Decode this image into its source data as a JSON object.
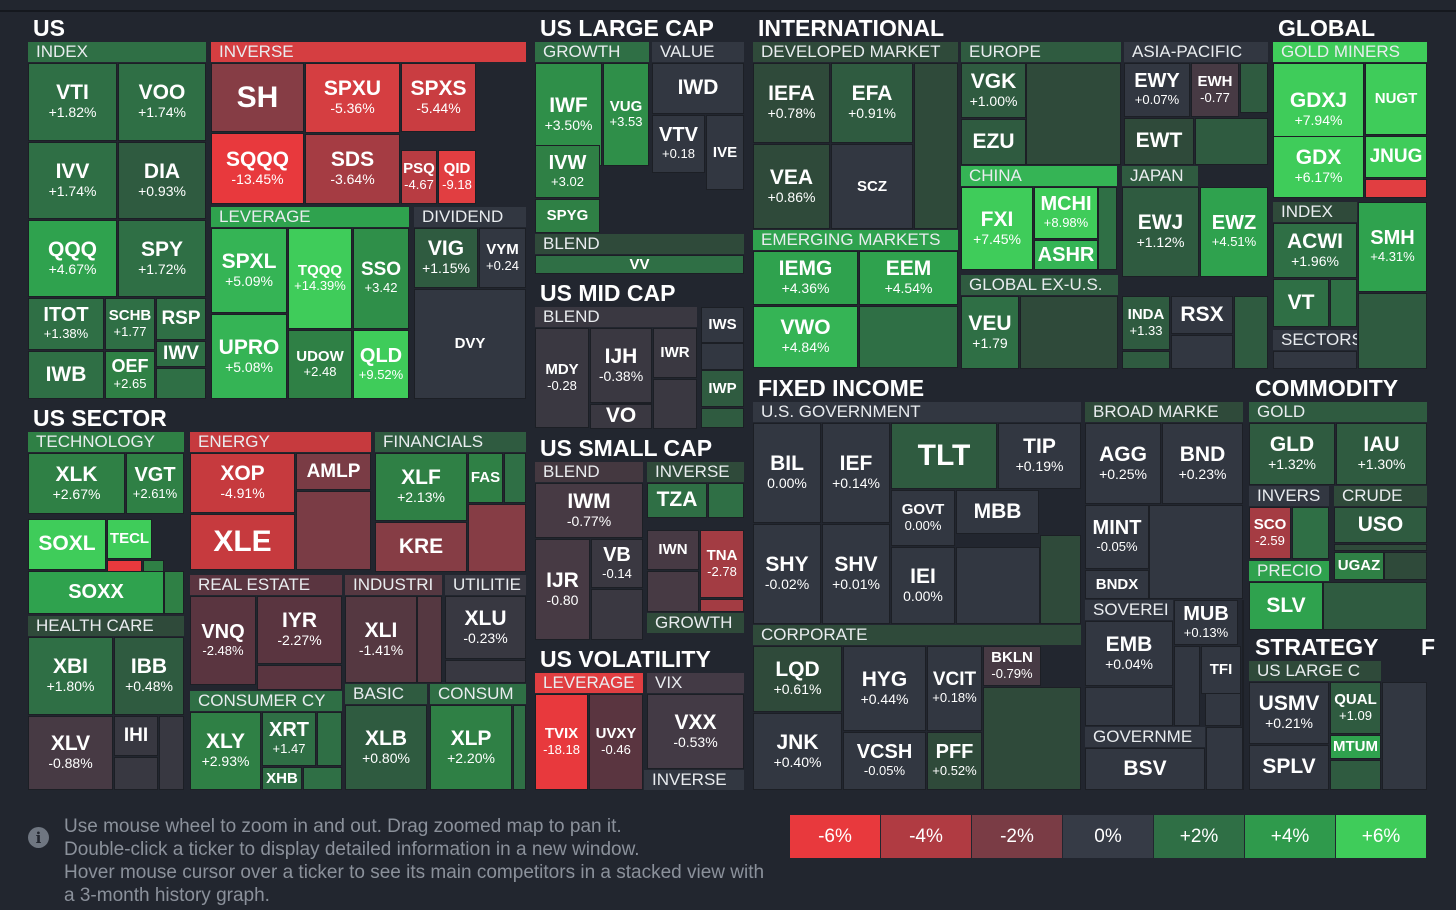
{
  "sections": [
    {
      "id": "us",
      "label": "US"
    },
    {
      "id": "us-large-cap",
      "label": "US LARGE CAP"
    },
    {
      "id": "international",
      "label": "INTERNATIONAL"
    },
    {
      "id": "global",
      "label": "GLOBAL"
    },
    {
      "id": "us-mid-cap",
      "label": "US MID CAP"
    },
    {
      "id": "us-sector",
      "label": "US SECTOR"
    },
    {
      "id": "us-small-cap",
      "label": "US SMALL CAP"
    },
    {
      "id": "fixed-income",
      "label": "FIXED INCOME"
    },
    {
      "id": "commodity",
      "label": "COMMODITY"
    },
    {
      "id": "us-volatility",
      "label": "US VOLATILITY"
    },
    {
      "id": "strategy",
      "label": "STRATEGY"
    },
    {
      "id": "f",
      "label": "F"
    }
  ],
  "groups": [
    {
      "id": "index",
      "label": "INDEX",
      "c": "#2f6f45"
    },
    {
      "id": "inverse",
      "label": "INVERSE",
      "c": "#d53e41"
    },
    {
      "id": "leverage",
      "label": "LEVERAGE",
      "c": "#2fa24e"
    },
    {
      "id": "dividend",
      "label": "DIVIDEND",
      "c": "#323741"
    },
    {
      "id": "growth",
      "label": "GROWTH",
      "c": "#2f6f45"
    },
    {
      "id": "value",
      "label": "VALUE",
      "c": "#323741"
    },
    {
      "id": "blend-lc",
      "label": "BLEND",
      "c": "#2f4a3a"
    },
    {
      "id": "developed",
      "label": "DEVELOPED MARKET",
      "c": "#2f4a3a"
    },
    {
      "id": "europe",
      "label": "EUROPE",
      "c": "#2f5b40"
    },
    {
      "id": "asia-pacific",
      "label": "ASIA-PACIFIC",
      "c": "#323741"
    },
    {
      "id": "gold-miners",
      "label": "GOLD MINERS",
      "c": "#3fcc5a"
    },
    {
      "id": "china",
      "label": "CHINA",
      "c": "#35b455"
    },
    {
      "id": "japan",
      "label": "JAPAN",
      "c": "#2f5b40"
    },
    {
      "id": "index-g",
      "label": "INDEX",
      "c": "#2f4a3a"
    },
    {
      "id": "emerging",
      "label": "EMERGING MARKETS",
      "c": "#2fa24e"
    },
    {
      "id": "global-ex-us",
      "label": "GLOBAL EX-U.S.",
      "c": "#2f5b40"
    },
    {
      "id": "sectors",
      "label": "SECTORS",
      "c": "#323741"
    },
    {
      "id": "blend-mc",
      "label": "BLEND",
      "c": "#3a3841"
    },
    {
      "id": "technology",
      "label": "TECHNOLOGY",
      "c": "#2f8045"
    },
    {
      "id": "energy",
      "label": "ENERGY",
      "c": "#c63a3e"
    },
    {
      "id": "financials",
      "label": "FINANCIALS",
      "c": "#2f5b40"
    },
    {
      "id": "blend-sc",
      "label": "BLEND",
      "c": "#443840"
    },
    {
      "id": "inverse-sc",
      "label": "INVERSE",
      "c": "#2f4a3a"
    },
    {
      "id": "us-government",
      "label": "U.S. GOVERNMENT",
      "c": "#323741"
    },
    {
      "id": "broad-market",
      "label": "BROAD MARKE",
      "c": "#2f4a3a"
    },
    {
      "id": "gold",
      "label": "GOLD",
      "c": "#2f5b40"
    },
    {
      "id": "invers-c",
      "label": "INVERS",
      "c": "#323741"
    },
    {
      "id": "crude",
      "label": "CRUDE",
      "c": "#2f4a3a"
    },
    {
      "id": "real-estate",
      "label": "REAL ESTATE",
      "c": "#5a3540"
    },
    {
      "id": "industri",
      "label": "INDUSTRI",
      "c": "#553841"
    },
    {
      "id": "utilitie",
      "label": "UTILITIE",
      "c": "#383841"
    },
    {
      "id": "health-care",
      "label": "HEALTH CARE",
      "c": "#2f4a3a"
    },
    {
      "id": "growth-sc",
      "label": "GROWTH",
      "c": "#2f4a3a"
    },
    {
      "id": "precio",
      "label": "PRECIO",
      "c": "#2fa24e"
    },
    {
      "id": "soverei",
      "label": "SOVEREI",
      "c": "#323741"
    },
    {
      "id": "corporate",
      "label": "CORPORATE",
      "c": "#2f4a3a"
    },
    {
      "id": "leverage-vol",
      "label": "LEVERAGE",
      "c": "#e13e41"
    },
    {
      "id": "vix",
      "label": "VIX",
      "c": "#433a45"
    },
    {
      "id": "consumer-cy",
      "label": "CONSUMER CY",
      "c": "#2f6f45"
    },
    {
      "id": "basic",
      "label": "BASIC",
      "c": "#2f5b40"
    },
    {
      "id": "consum",
      "label": "CONSUM",
      "c": "#2f6f45"
    },
    {
      "id": "us-large-c",
      "label": "US LARGE C",
      "c": "#2f4a3a"
    },
    {
      "id": "governme",
      "label": "GOVERNME",
      "c": "#323741"
    },
    {
      "id": "inverse-vol",
      "label": "INVERSE",
      "c": "#323741"
    }
  ],
  "tickers": [
    {
      "s": "VTI",
      "v": "+1.82%",
      "c": "#2f6f45"
    },
    {
      "s": "VOO",
      "v": "+1.74%",
      "c": "#2f6f45"
    },
    {
      "s": "IVV",
      "v": "+1.74%",
      "c": "#2f6f45"
    },
    {
      "s": "DIA",
      "v": "+0.93%",
      "c": "#2f5b40"
    },
    {
      "s": "QQQ",
      "v": "+4.67%",
      "c": "#2fa24e"
    },
    {
      "s": "SPY",
      "v": "+1.72%",
      "c": "#2f6f45"
    },
    {
      "s": "ITOT",
      "v": "+1.38%",
      "c": "#2f6f45"
    },
    {
      "s": "SCHB",
      "v": "+1.77",
      "c": "#2f6f45"
    },
    {
      "s": "RSP",
      "v": "",
      "c": "#2f6f45"
    },
    {
      "s": "IWV",
      "v": "",
      "c": "#2f6f45"
    },
    {
      "s": "IWB",
      "v": "",
      "c": "#2f6f45"
    },
    {
      "s": "OEF",
      "v": "+2.65",
      "c": "#2f8045"
    },
    {
      "s": "SH",
      "v": "",
      "c": "#863d45"
    },
    {
      "s": "SPXU",
      "v": "-5.36%",
      "c": "#d53e41"
    },
    {
      "s": "SPXS",
      "v": "-5.44%",
      "c": "#c93d41"
    },
    {
      "s": "SQQQ",
      "v": "-13.45%",
      "c": "#e8393d"
    },
    {
      "s": "SDS",
      "v": "-3.64%",
      "c": "#a53c43"
    },
    {
      "s": "PSQ",
      "v": "-4.67",
      "c": "#b83c42"
    },
    {
      "s": "QID",
      "v": "-9.18",
      "c": "#e13e41"
    },
    {
      "s": "SPXL",
      "v": "+5.09%",
      "c": "#35b455"
    },
    {
      "s": "TQQQ",
      "v": "+14.39%",
      "c": "#3fcc5a"
    },
    {
      "s": "SSO",
      "v": "+3.42",
      "c": "#2f8f49"
    },
    {
      "s": "UPRO",
      "v": "+5.08%",
      "c": "#35b455"
    },
    {
      "s": "UDOW",
      "v": "+2.48",
      "c": "#2f8045"
    },
    {
      "s": "QLD",
      "v": "+9.52%",
      "c": "#3fcc5a"
    },
    {
      "s": "VIG",
      "v": "+1.15%",
      "c": "#2f5b40"
    },
    {
      "s": "VYM",
      "v": "+0.24",
      "c": "#323741"
    },
    {
      "s": "DVY",
      "v": "",
      "c": "#323741"
    },
    {
      "s": "IWF",
      "v": "+3.50%",
      "c": "#2f8f49"
    },
    {
      "s": "VUG",
      "v": "+3.53",
      "c": "#2f8f49"
    },
    {
      "s": "IVW",
      "v": "+3.02",
      "c": "#2f8045"
    },
    {
      "s": "SPYG",
      "v": "",
      "c": "#2f8045"
    },
    {
      "s": "IWD",
      "v": "",
      "c": "#323741"
    },
    {
      "s": "VTV",
      "v": "+0.18",
      "c": "#323741"
    },
    {
      "s": "IVE",
      "v": "",
      "c": "#323741"
    },
    {
      "s": "VV",
      "v": "",
      "c": "#2f6f45"
    },
    {
      "s": "IEFA",
      "v": "+0.78%",
      "c": "#2f4a3a"
    },
    {
      "s": "EFA",
      "v": "+0.91%",
      "c": "#2f5b40"
    },
    {
      "s": "VEA",
      "v": "+0.86%",
      "c": "#2f4a3a"
    },
    {
      "s": "SCZ",
      "v": "",
      "c": "#323741"
    },
    {
      "s": "VGK",
      "v": "+1.00%",
      "c": "#2f5b40"
    },
    {
      "s": "EZU",
      "v": "",
      "c": "#2f5b40"
    },
    {
      "s": "EWY",
      "v": "+0.07%",
      "c": "#323741"
    },
    {
      "s": "EWH",
      "v": "-0.77",
      "c": "#473a44"
    },
    {
      "s": "EWT",
      "v": "",
      "c": "#2f4a3a"
    },
    {
      "s": "GDXJ",
      "v": "+7.94%",
      "c": "#3fcc5a"
    },
    {
      "s": "NUGT",
      "v": "",
      "c": "#3fcc5a"
    },
    {
      "s": "GDX",
      "v": "+6.17%",
      "c": "#3fcc5a"
    },
    {
      "s": "JNUG",
      "v": "",
      "c": "#3fcc5a"
    },
    {
      "s": "FXI",
      "v": "+7.45%",
      "c": "#3fcc5a"
    },
    {
      "s": "MCHI",
      "v": "+8.98%",
      "c": "#3fcc5a"
    },
    {
      "s": "ASHR",
      "v": "",
      "c": "#35b455"
    },
    {
      "s": "EWJ",
      "v": "+1.12%",
      "c": "#2f5b40"
    },
    {
      "s": "EWZ",
      "v": "+4.51%",
      "c": "#2fa24e"
    },
    {
      "s": "ACWI",
      "v": "+1.96%",
      "c": "#2f6f45"
    },
    {
      "s": "SMH",
      "v": "+4.31%",
      "c": "#2fa24e"
    },
    {
      "s": "VT",
      "v": "",
      "c": "#2f6f45"
    },
    {
      "s": "IEMG",
      "v": "+4.36%",
      "c": "#2fa24e"
    },
    {
      "s": "EEM",
      "v": "+4.54%",
      "c": "#2fa24e"
    },
    {
      "s": "VWO",
      "v": "+4.84%",
      "c": "#35b455"
    },
    {
      "s": "VEU",
      "v": "+1.79",
      "c": "#2f6f45"
    },
    {
      "s": "INDA",
      "v": "+1.33",
      "c": "#2f5b40"
    },
    {
      "s": "RSX",
      "v": "",
      "c": "#323741"
    },
    {
      "s": "MDY",
      "v": "-0.28",
      "c": "#3a3841"
    },
    {
      "s": "IJH",
      "v": "-0.38%",
      "c": "#3a3841"
    },
    {
      "s": "IWR",
      "v": "",
      "c": "#3a3841"
    },
    {
      "s": "IWS",
      "v": "",
      "c": "#323741"
    },
    {
      "s": "IWP",
      "v": "",
      "c": "#2f5b40"
    },
    {
      "s": "VO",
      "v": "",
      "c": "#3a3841"
    },
    {
      "s": "XLK",
      "v": "+2.67%",
      "c": "#2f8045"
    },
    {
      "s": "VGT",
      "v": "+2.61%",
      "c": "#2f8045"
    },
    {
      "s": "SOXL",
      "v": "",
      "c": "#3fcc5a"
    },
    {
      "s": "TECL",
      "v": "",
      "c": "#3fcc5a"
    },
    {
      "s": "SOXX",
      "v": "",
      "c": "#2fa24e"
    },
    {
      "s": "XOP",
      "v": "-4.91%",
      "c": "#c63a3e"
    },
    {
      "s": "AMLP",
      "v": "",
      "c": "#7a3c45"
    },
    {
      "s": "XLE",
      "v": "",
      "c": "#c63a3e"
    },
    {
      "s": "XLF",
      "v": "+2.13%",
      "c": "#2f8045"
    },
    {
      "s": "FAS",
      "v": "",
      "c": "#2f8045"
    },
    {
      "s": "KRE",
      "v": "",
      "c": "#863d45"
    },
    {
      "s": "IWM",
      "v": "-0.77%",
      "c": "#473a44"
    },
    {
      "s": "IJR",
      "v": "-0.80",
      "c": "#473a44"
    },
    {
      "s": "VB",
      "v": "-0.14",
      "c": "#3a3841"
    },
    {
      "s": "TZA",
      "v": "",
      "c": "#2f6f45"
    },
    {
      "s": "IWN",
      "v": "",
      "c": "#473a44"
    },
    {
      "s": "TNA",
      "v": "-2.78",
      "c": "#a33c43"
    },
    {
      "s": "BIL",
      "v": "0.00%",
      "c": "#323741"
    },
    {
      "s": "IEF",
      "v": "+0.14%",
      "c": "#323741"
    },
    {
      "s": "TLT",
      "v": "",
      "c": "#2f5b40"
    },
    {
      "s": "TIP",
      "v": "+0.19%",
      "c": "#323741"
    },
    {
      "s": "GOVT",
      "v": "0.00%",
      "c": "#323741"
    },
    {
      "s": "MBB",
      "v": "",
      "c": "#323741"
    },
    {
      "s": "SHY",
      "v": "-0.02%",
      "c": "#323741"
    },
    {
      "s": "SHV",
      "v": "+0.01%",
      "c": "#323741"
    },
    {
      "s": "IEI",
      "v": "0.00%",
      "c": "#323741"
    },
    {
      "s": "AGG",
      "v": "+0.25%",
      "c": "#323741"
    },
    {
      "s": "BND",
      "v": "+0.23%",
      "c": "#323741"
    },
    {
      "s": "MINT",
      "v": "-0.05%",
      "c": "#323741"
    },
    {
      "s": "BNDX",
      "v": "",
      "c": "#323741"
    },
    {
      "s": "GLD",
      "v": "+1.32%",
      "c": "#2f5b40"
    },
    {
      "s": "IAU",
      "v": "+1.30%",
      "c": "#2f5b40"
    },
    {
      "s": "SCO",
      "v": "-2.59",
      "c": "#a53c43"
    },
    {
      "s": "USO",
      "v": "",
      "c": "#2f5b40"
    },
    {
      "s": "UGAZ",
      "v": "",
      "c": "#2f8045"
    },
    {
      "s": "SLV",
      "v": "",
      "c": "#2fa24e"
    },
    {
      "s": "VNQ",
      "v": "-2.48%",
      "c": "#5a3540"
    },
    {
      "s": "IYR",
      "v": "-2.27%",
      "c": "#5a3540"
    },
    {
      "s": "XLI",
      "v": "-1.41%",
      "c": "#553841"
    },
    {
      "s": "XLU",
      "v": "-0.23%",
      "c": "#383841"
    },
    {
      "s": "XBI",
      "v": "+1.80%",
      "c": "#2f6f45"
    },
    {
      "s": "IBB",
      "v": "+0.48%",
      "c": "#2f5b40"
    },
    {
      "s": "XLV",
      "v": "-0.88%",
      "c": "#473a44"
    },
    {
      "s": "IHI",
      "v": "",
      "c": "#383841"
    },
    {
      "s": "TVIX",
      "v": "-18.18",
      "c": "#e8393d"
    },
    {
      "s": "UVXY",
      "v": "-0.46",
      "c": "#5a3540"
    },
    {
      "s": "VXX",
      "v": "-0.53%",
      "c": "#433a45"
    },
    {
      "s": "LQD",
      "v": "+0.61%",
      "c": "#2f4a3a"
    },
    {
      "s": "HYG",
      "v": "+0.44%",
      "c": "#323741"
    },
    {
      "s": "VCIT",
      "v": "+0.18%",
      "c": "#323741"
    },
    {
      "s": "BKLN",
      "v": "-0.79%",
      "c": "#473a44"
    },
    {
      "s": "JNK",
      "v": "+0.40%",
      "c": "#323741"
    },
    {
      "s": "VCSH",
      "v": "-0.05%",
      "c": "#323741"
    },
    {
      "s": "PFF",
      "v": "+0.52%",
      "c": "#2f4a3a"
    },
    {
      "s": "EMB",
      "v": "+0.04%",
      "c": "#323741"
    },
    {
      "s": "MUB",
      "v": "+0.13%",
      "c": "#323741"
    },
    {
      "s": "TFI",
      "v": "",
      "c": "#323741"
    },
    {
      "s": "BSV",
      "v": "",
      "c": "#323741"
    },
    {
      "s": "XLY",
      "v": "+2.93%",
      "c": "#2f8045"
    },
    {
      "s": "XRT",
      "v": "+1.47",
      "c": "#2f6f45"
    },
    {
      "s": "XHB",
      "v": "",
      "c": "#2f6f45"
    },
    {
      "s": "XLB",
      "v": "+0.80%",
      "c": "#2f5b40"
    },
    {
      "s": "XLP",
      "v": "+2.20%",
      "c": "#2f8045"
    },
    {
      "s": "USMV",
      "v": "+0.21%",
      "c": "#323741"
    },
    {
      "s": "QUAL",
      "v": "+1.09",
      "c": "#2f5b40"
    },
    {
      "s": "MTUM",
      "v": "",
      "c": "#2fa24e"
    },
    {
      "s": "SPLV",
      "v": "",
      "c": "#323741"
    }
  ],
  "legend": [
    {
      "label": "-6%",
      "color": "#e8393d"
    },
    {
      "label": "-4%",
      "color": "#b03b42"
    },
    {
      "label": "-2%",
      "color": "#7a3c45"
    },
    {
      "label": "0%",
      "color": "#363b46"
    },
    {
      "label": "+2%",
      "color": "#2f6f45"
    },
    {
      "label": "+4%",
      "color": "#2f9a4c"
    },
    {
      "label": "+6%",
      "color": "#3fcc5a"
    }
  ],
  "info": {
    "icon": "info-icon",
    "lines": [
      "Use mouse wheel to zoom in and out. Drag zoomed map to pan it.",
      "Double-click a ticker to display detailed information in a new window.",
      "Hover mouse cursor over a ticker to see its main competitors in a stacked view with",
      "a 3-month history graph."
    ]
  }
}
